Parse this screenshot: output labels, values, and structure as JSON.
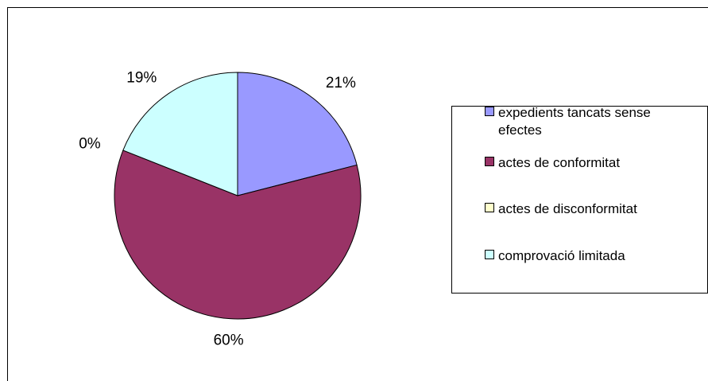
{
  "chart_data": {
    "type": "pie",
    "title": "",
    "slices": [
      {
        "label": "expedients tancats sense efectes",
        "label_lines": [
          "expedients tancats sense",
          "efectes"
        ],
        "value": 21,
        "display": "21%",
        "color": "#9999ff"
      },
      {
        "label": "actes de conformitat",
        "label_lines": [
          "actes de conformitat"
        ],
        "value": 60,
        "display": "60%",
        "color": "#993366"
      },
      {
        "label": "actes de disconformitat",
        "label_lines": [
          "actes de disconformitat"
        ],
        "value": 0,
        "display": "0%",
        "color": "#ffffcc"
      },
      {
        "label": "comprovació limitada",
        "label_lines": [
          "comprovació limitada"
        ],
        "value": 19,
        "display": "19%",
        "color": "#ccffff"
      }
    ],
    "start": "12 o'clock",
    "direction": "clockwise",
    "legend_position": "right"
  }
}
